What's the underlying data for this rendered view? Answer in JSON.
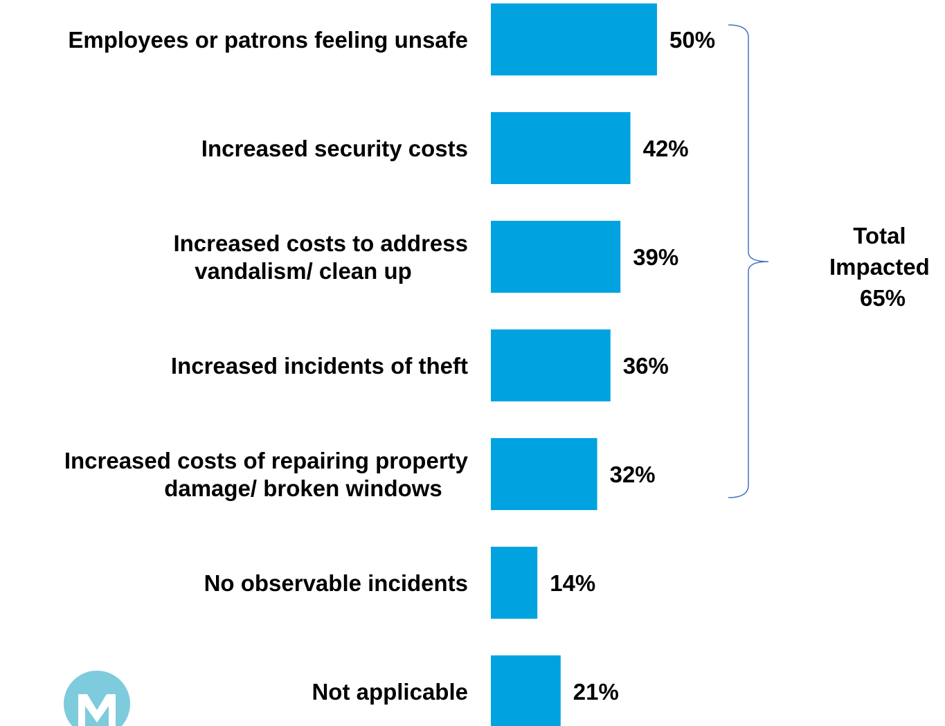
{
  "chart_data": {
    "type": "bar",
    "orientation": "horizontal",
    "categories": [
      "Employees or patrons feeling unsafe",
      "Increased security costs",
      "Increased costs to address vandalism/ clean up",
      "Increased incidents of theft",
      "Increased costs of repairing property damage/ broken windows",
      "No observable incidents",
      "Not applicable"
    ],
    "category_lines": [
      [
        "Employees or patrons feeling unsafe"
      ],
      [
        "Increased security costs"
      ],
      [
        "Increased costs to address",
        "vandalism/ clean up"
      ],
      [
        "Increased incidents of theft"
      ],
      [
        "Increased costs of repairing property",
        "damage/ broken windows"
      ],
      [
        "No observable incidents"
      ],
      [
        "Not applicable"
      ]
    ],
    "values": [
      50,
      42,
      39,
      36,
      32,
      14,
      21
    ],
    "value_labels": [
      "50%",
      "42%",
      "39%",
      "36%",
      "32%",
      "14%",
      "21%"
    ],
    "grid": false,
    "bar_color": "#00A3E0",
    "bracket": {
      "spans_categories": [
        0,
        4
      ],
      "label_lines": [
        "Total",
        "Impacted",
        "65%"
      ],
      "value": 65,
      "color": "#4472C4"
    }
  },
  "logo": {
    "name": "M",
    "color": "#7ECBDD"
  }
}
